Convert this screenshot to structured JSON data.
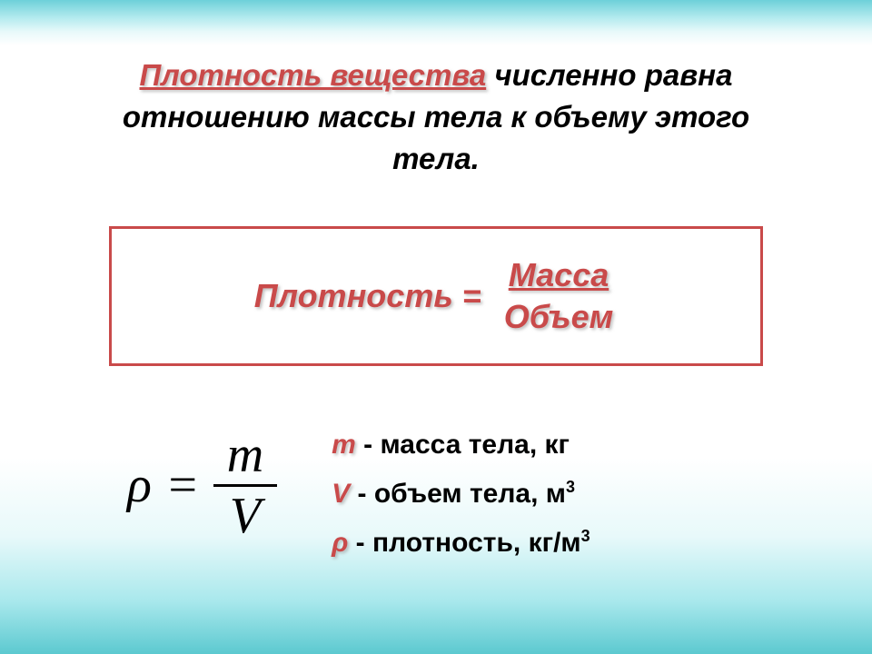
{
  "definition": {
    "term": "Плотность вещества",
    "rest": " численно равна отношению массы тела к объему этого тела."
  },
  "word_formula": {
    "lhs": "Плотность =",
    "numerator": "Масса",
    "denominator": "Объем"
  },
  "symbol_formula": {
    "rho": "ρ",
    "eq": "=",
    "num": "m",
    "den": "V"
  },
  "legend": {
    "m_sym": "m",
    "m_desc": " - масса тела, кг",
    "v_sym": "V",
    "v_desc_pre": " - объем тела, м",
    "v_sup": "3",
    "rho_sym": "ρ",
    "rho_desc_pre": " - плотность, кг/м",
    "rho_sup": "3"
  },
  "styling": {
    "accent_color": "#c94a4a",
    "text_color": "#000000",
    "bg_top_gradient": [
      "#6dd0d9",
      "#ffffff"
    ],
    "bg_bottom_gradient": [
      "#ffffff",
      "#5cc9d0"
    ],
    "definition_fontsize": 33,
    "word_formula_fontsize": 36,
    "symbol_formula_fontsize": 56,
    "legend_fontsize": 30,
    "box_border_width": 3
  }
}
